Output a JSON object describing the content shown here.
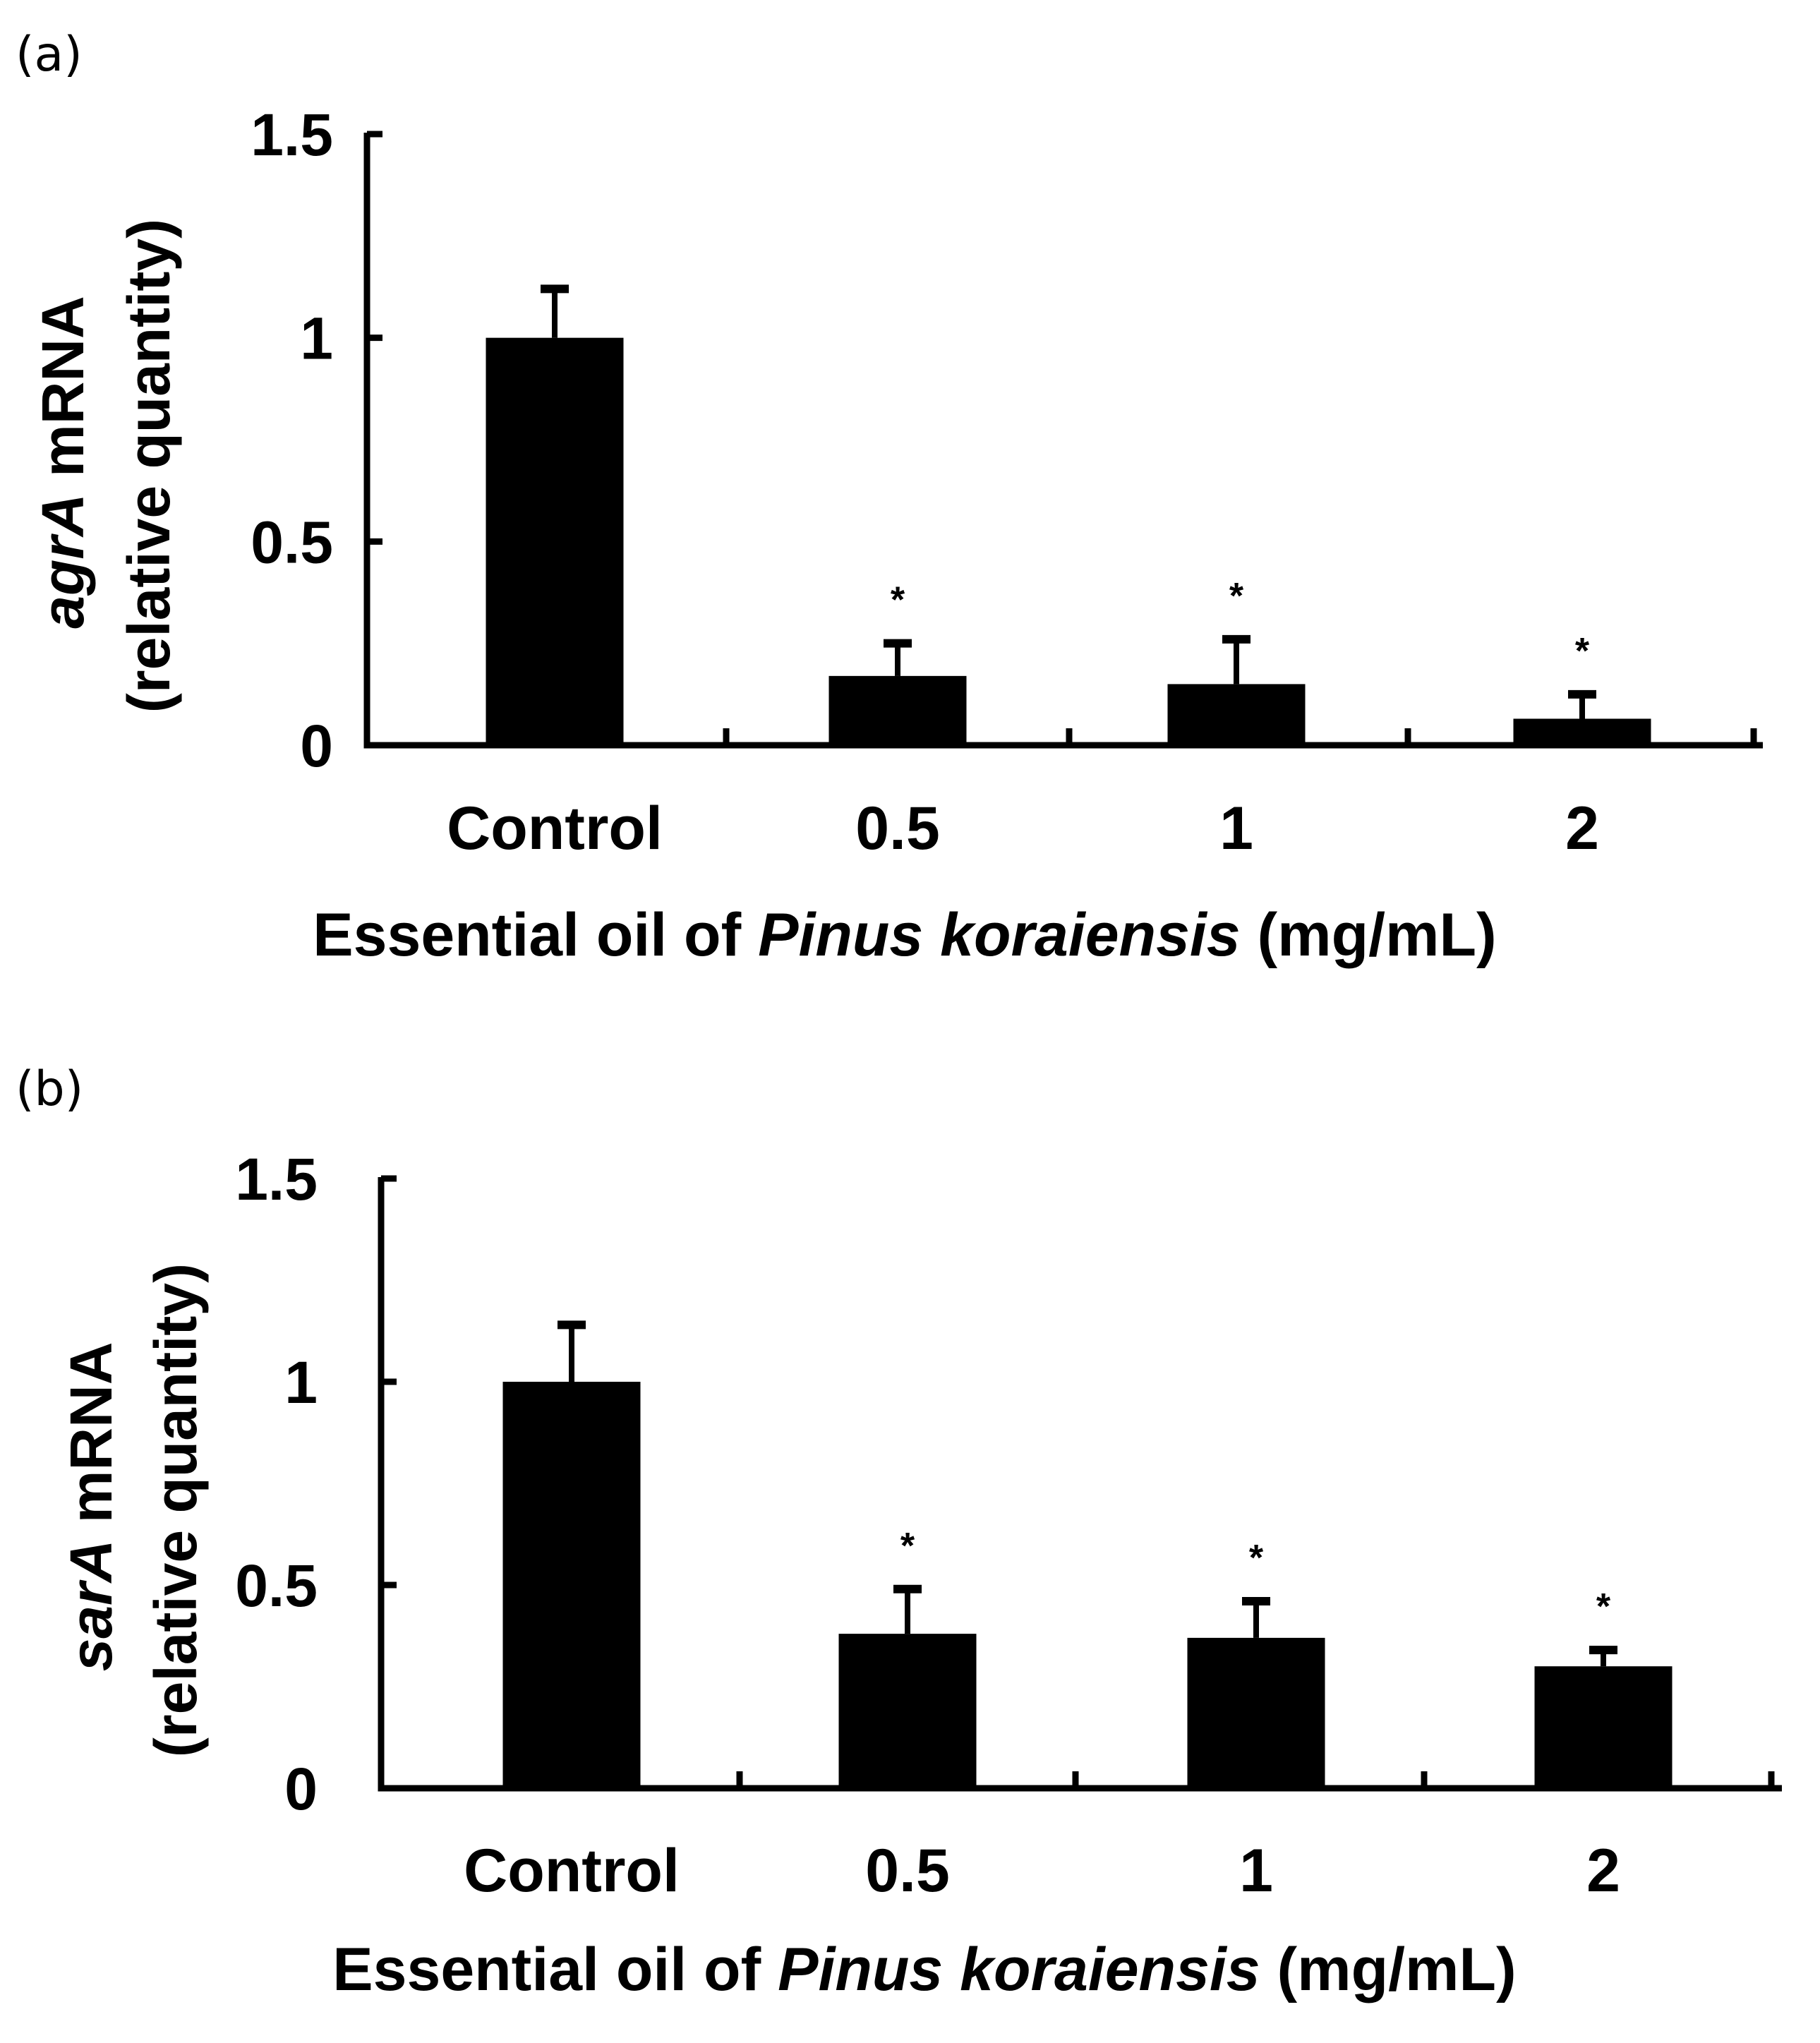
{
  "chart_data": [
    {
      "type": "bar",
      "panel_label": "(a)",
      "categories": [
        "Control",
        "0.5",
        "1",
        "2"
      ],
      "values": [
        1.0,
        0.17,
        0.15,
        0.065
      ],
      "error": [
        0.12,
        0.08,
        0.11,
        0.06
      ],
      "significance": [
        "",
        "*",
        "*",
        "*"
      ],
      "ylim": [
        0,
        1.5
      ],
      "yticks": [
        0,
        0.5,
        1,
        1.5
      ],
      "ytick_labels": [
        "0",
        "0.5",
        "1",
        "1.5"
      ],
      "ylabel": {
        "italic": "agrA",
        "rest": " mRNA",
        "line2": "(relative quantity)"
      },
      "xlabel": {
        "pre": "Essential oil of ",
        "italic": "Pinus koraiensis",
        "post": " (mg/mL)"
      },
      "bar_color": "#000000",
      "grid": false
    },
    {
      "type": "bar",
      "panel_label": "(b)",
      "categories": [
        "Control",
        "0.5",
        "1",
        "2"
      ],
      "values": [
        1.0,
        0.38,
        0.37,
        0.3
      ],
      "error": [
        0.14,
        0.11,
        0.09,
        0.04
      ],
      "significance": [
        "",
        "*",
        "*",
        "*"
      ],
      "ylim": [
        0,
        1.5
      ],
      "yticks": [
        0,
        0.5,
        1,
        1.5
      ],
      "ytick_labels": [
        "0",
        "0.5",
        "1",
        "1.5"
      ],
      "ylabel": {
        "italic": "sarA",
        "rest": " mRNA",
        "line2": "(relative quantity)"
      },
      "xlabel": {
        "pre": "Essential oil of ",
        "italic": "Pinus koraiensis",
        "post": " (mg/mL)"
      },
      "bar_color": "#000000",
      "grid": false
    }
  ]
}
